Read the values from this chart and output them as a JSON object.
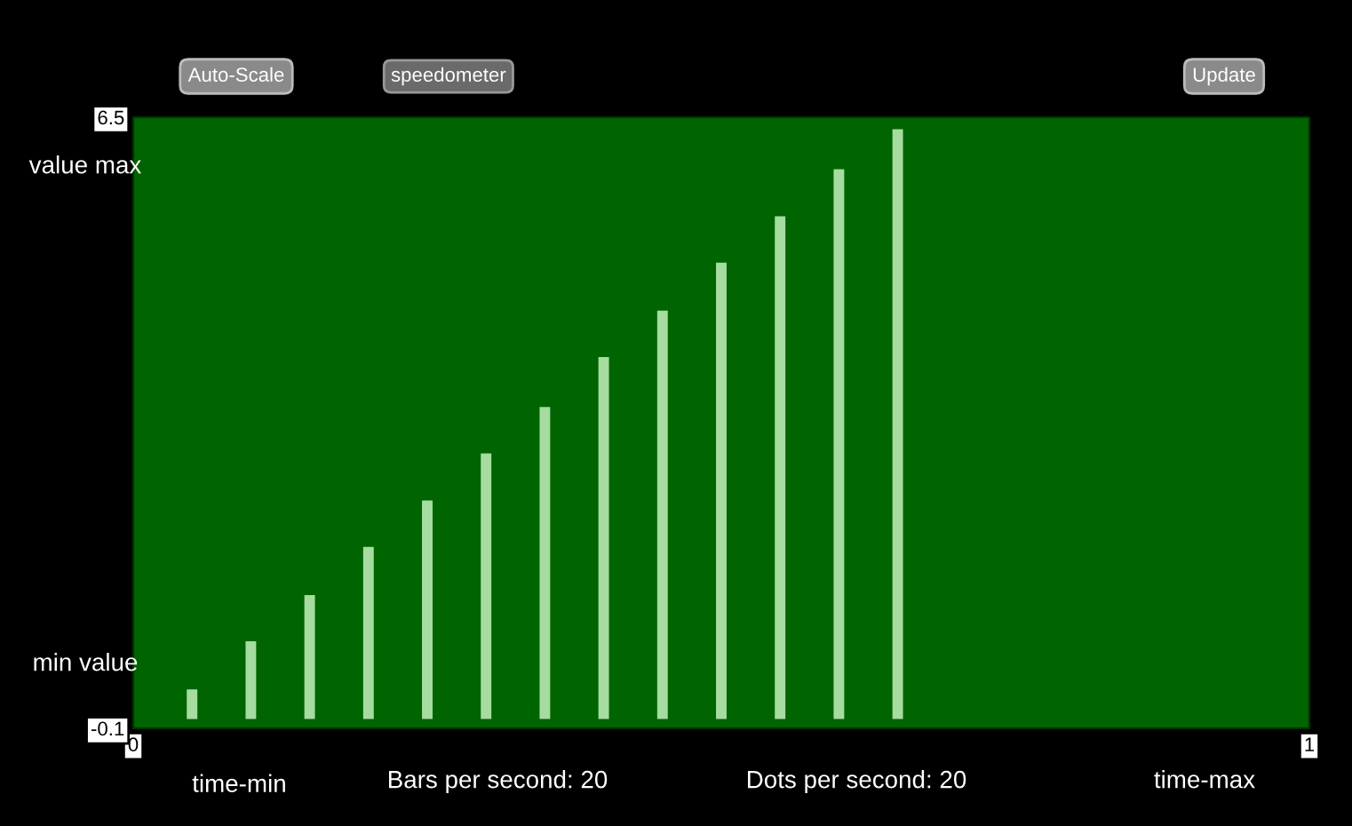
{
  "chart_data": {
    "type": "bar",
    "title": "speedometer",
    "x": [
      0.05,
      0.1,
      0.15,
      0.2,
      0.25,
      0.3,
      0.35,
      0.4,
      0.45,
      0.5,
      0.55,
      0.6,
      0.65
    ],
    "values": [
      0.32,
      0.84,
      1.34,
      1.86,
      2.36,
      2.87,
      3.37,
      3.91,
      4.41,
      4.93,
      5.43,
      5.94,
      6.37
    ],
    "color": "#a6dca0",
    "xlim": [
      0,
      1
    ],
    "xticks": [
      0,
      1
    ],
    "ylim": [
      -0.1,
      6.5
    ],
    "yticks": [
      -0.1,
      6.5
    ],
    "xlabel": "time-min",
    "annotations": [
      "Auto-Scale",
      "Update",
      "value max",
      "min value",
      "time-max",
      "Bars per second: 20",
      "Dots per second: 20"
    ],
    "grid": false,
    "legend": false
  }
}
